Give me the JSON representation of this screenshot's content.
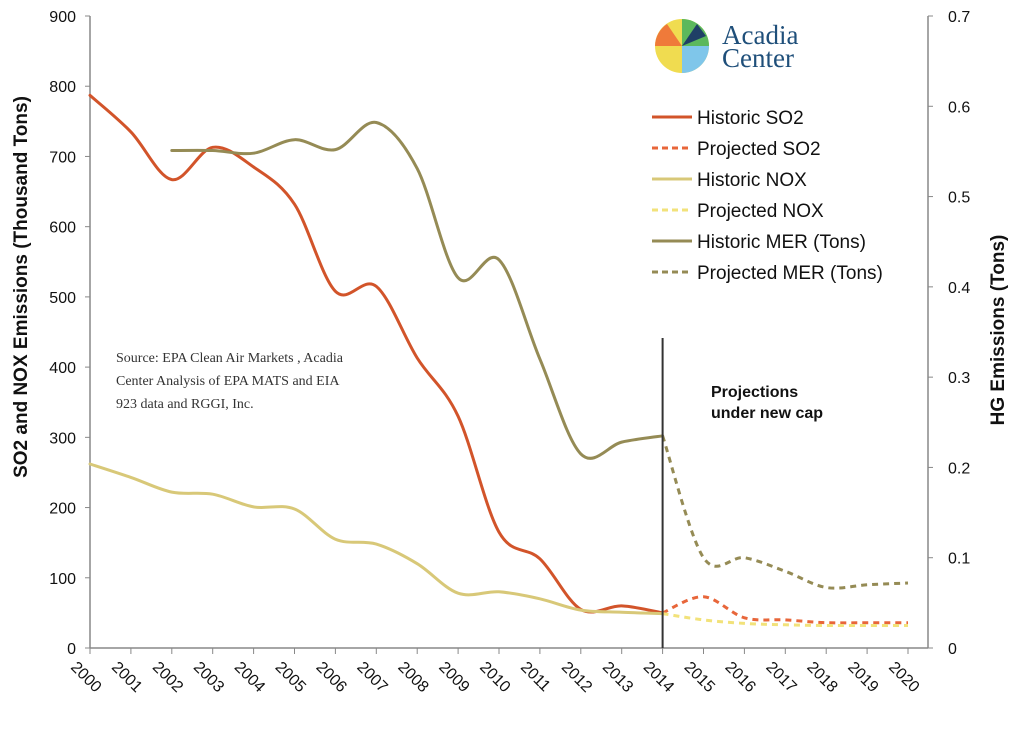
{
  "chart_data": {
    "type": "line",
    "x": [
      2000,
      2001,
      2002,
      2003,
      2004,
      2005,
      2006,
      2007,
      2008,
      2009,
      2010,
      2011,
      2012,
      2013,
      2014,
      2015,
      2016,
      2017,
      2018,
      2019,
      2020
    ],
    "x_tick_labels": [
      "2000",
      "2001",
      "2002",
      "2003",
      "2004",
      "2005",
      "2006",
      "2007",
      "2008",
      "2009",
      "2010",
      "2011",
      "2012",
      "2013",
      "2014",
      "2015",
      "2016",
      "2017",
      "2018",
      "2019",
      "2020"
    ],
    "ylabel_left": "SO2 and NOX Emissions (Thousand Tons)",
    "ylabel_right": "HG Emissions (Tons)",
    "ylim_left": [
      0,
      900
    ],
    "ylim_right": [
      0,
      0.7
    ],
    "yticks_left": [
      "0",
      "100",
      "200",
      "300",
      "400",
      "500",
      "600",
      "700",
      "800",
      "900"
    ],
    "yticks_right": [
      "0",
      "0.1",
      "0.2",
      "0.3",
      "0.4",
      "0.5",
      "0.6",
      "0.7"
    ],
    "series": [
      {
        "name": "Historic SO2",
        "axis": "left",
        "color": "#d2542a",
        "dashed": false,
        "points": [
          [
            2000,
            787
          ],
          [
            2001,
            735
          ],
          [
            2002,
            667
          ],
          [
            2003,
            713
          ],
          [
            2004,
            685
          ],
          [
            2005,
            632
          ],
          [
            2006,
            508
          ],
          [
            2007,
            515
          ],
          [
            2008,
            413
          ],
          [
            2009,
            330
          ],
          [
            2010,
            165
          ],
          [
            2011,
            127
          ],
          [
            2012,
            55
          ],
          [
            2013,
            60
          ],
          [
            2014,
            50
          ]
        ]
      },
      {
        "name": "Projected SO2",
        "axis": "left",
        "color": "#e8663a",
        "dashed": true,
        "points": [
          [
            2014,
            50
          ],
          [
            2015,
            73
          ],
          [
            2016,
            43
          ],
          [
            2017,
            40
          ],
          [
            2018,
            36
          ],
          [
            2019,
            36
          ],
          [
            2020,
            36
          ]
        ]
      },
      {
        "name": "Historic NOX",
        "axis": "left",
        "color": "#d8c878",
        "dashed": false,
        "points": [
          [
            2000,
            262
          ],
          [
            2001,
            243
          ],
          [
            2002,
            222
          ],
          [
            2003,
            219
          ],
          [
            2004,
            201
          ],
          [
            2005,
            198
          ],
          [
            2006,
            155
          ],
          [
            2007,
            148
          ],
          [
            2008,
            120
          ],
          [
            2009,
            78
          ],
          [
            2010,
            80
          ],
          [
            2011,
            70
          ],
          [
            2012,
            54
          ],
          [
            2013,
            51
          ],
          [
            2014,
            49
          ]
        ]
      },
      {
        "name": "Projected NOX",
        "axis": "left",
        "color": "#f2e27a",
        "dashed": true,
        "points": [
          [
            2014,
            49
          ],
          [
            2015,
            40
          ],
          [
            2016,
            35
          ],
          [
            2017,
            33
          ],
          [
            2018,
            32
          ],
          [
            2019,
            32
          ],
          [
            2020,
            32
          ]
        ]
      },
      {
        "name": "Historic MER (Tons)",
        "axis": "right",
        "color": "#958b55",
        "dashed": false,
        "points": [
          [
            2002,
            0.551
          ],
          [
            2003,
            0.551
          ],
          [
            2004,
            0.548
          ],
          [
            2005,
            0.563
          ],
          [
            2006,
            0.552
          ],
          [
            2007,
            0.582
          ],
          [
            2008,
            0.531
          ],
          [
            2009,
            0.41
          ],
          [
            2010,
            0.43
          ],
          [
            2011,
            0.32
          ],
          [
            2012,
            0.215
          ],
          [
            2013,
            0.228
          ],
          [
            2014,
            0.235
          ]
        ]
      },
      {
        "name": "Projected MER (Tons)",
        "axis": "right",
        "color": "#958b55",
        "dashed": true,
        "points": [
          [
            2014,
            0.235
          ],
          [
            2015,
            0.1
          ],
          [
            2016,
            0.1
          ],
          [
            2017,
            0.085
          ],
          [
            2018,
            0.067
          ],
          [
            2019,
            0.07
          ],
          [
            2020,
            0.072
          ]
        ]
      }
    ],
    "legend_position": "top-right",
    "annotations": {
      "source_lines": [
        "Source: EPA Clean Air Markets , Acadia",
        "Center Analysis of EPA MATS and EIA",
        "923 data and RGGI, Inc."
      ],
      "projection_lines": [
        "Projections",
        "under new cap"
      ],
      "projection_year": 2014
    }
  },
  "logo": {
    "name_line1": "Acadia",
    "name_line2": "Center"
  },
  "colors": {
    "axis": "#888888",
    "divider": "#333333",
    "logo_text": "#1f4f7a",
    "logo_yellow": "#f0dc50",
    "logo_orange": "#ef7a3a",
    "logo_green": "#5cb85c",
    "logo_navy": "#1f3f66",
    "logo_blue": "#7fc6ea"
  }
}
